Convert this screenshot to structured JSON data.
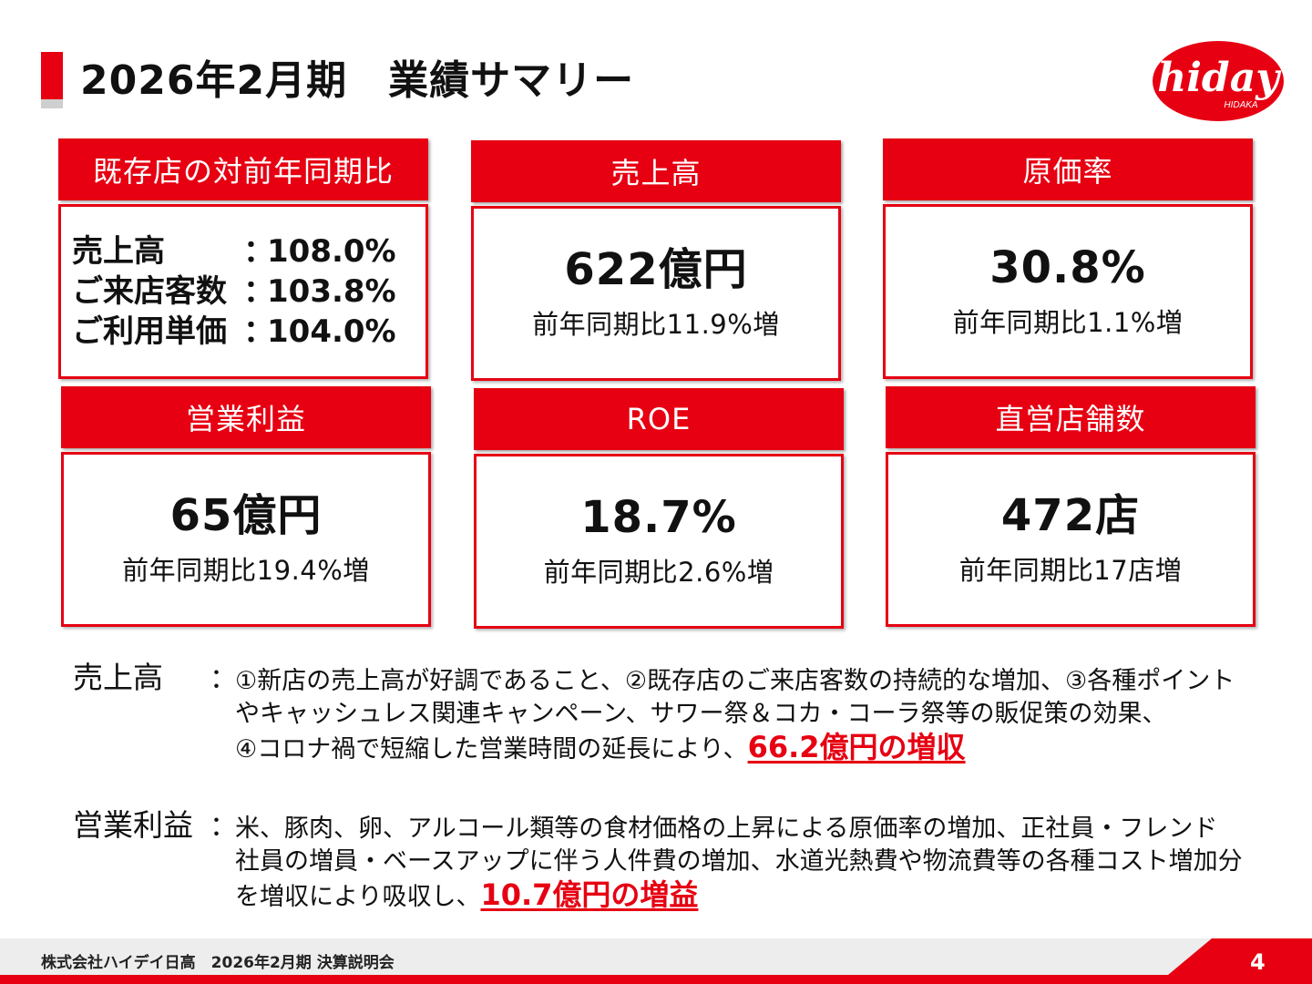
{
  "header": {
    "title": "2026年2月期　業績サマリー",
    "logo_text": "hiday",
    "logo_sub": "HIDAKA"
  },
  "cards": {
    "existing": {
      "title": "既存店の対前年同期比",
      "rows": [
        {
          "label": "売上高",
          "colon": "：",
          "value": "108.0%"
        },
        {
          "label": "ご来店客数",
          "colon": "：",
          "value": "103.8%"
        },
        {
          "label": "ご利用単価",
          "colon": "：",
          "value": "104.0%"
        }
      ]
    },
    "sales": {
      "title": "売上高",
      "value": "622億円",
      "sub": "前年同期比11.9%増"
    },
    "cost": {
      "title": "原価率",
      "value": "30.8%",
      "sub": "前年同期比1.1%増"
    },
    "op": {
      "title": "営業利益",
      "value": "65億円",
      "sub": "前年同期比19.4%増"
    },
    "roe": {
      "title": "ROE",
      "value": "18.7%",
      "sub": "前年同期比2.6%増"
    },
    "stores": {
      "title": "直営店舗数",
      "value": "472店",
      "sub": "前年同期比17店増"
    }
  },
  "notes": {
    "sales": {
      "head": "売上高",
      "colon": "：",
      "line1": "①新店の売上高が好調であること、②既存店のご来店客数の持続的な増加、③各種ポイント",
      "line2": "やキャッシュレス関連キャンペーン、サワー祭＆コカ・コーラ祭等の販促策の効果、",
      "line3": "④コロナ禍で短縮した営業時間の延長により、",
      "highlight": "66.2億円の増収"
    },
    "op": {
      "head": "営業利益",
      "colon": "：",
      "line1": "米、豚肉、卵、アルコール類等の食材価格の上昇による原価率の増加、正社員・フレンド",
      "line2": "社員の増員・ベースアップに伴う人件費の増加、水道光熱費や物流費等の各種コスト増加分",
      "line3": "を増収により吸収し、",
      "highlight": "10.7億円の増益"
    }
  },
  "footer": {
    "company": "株式会社ハイデイ日高　2026年2月期  決算説明会",
    "page": "4"
  },
  "colors": {
    "accent": "#e60012",
    "footer_band": "#ededed"
  }
}
